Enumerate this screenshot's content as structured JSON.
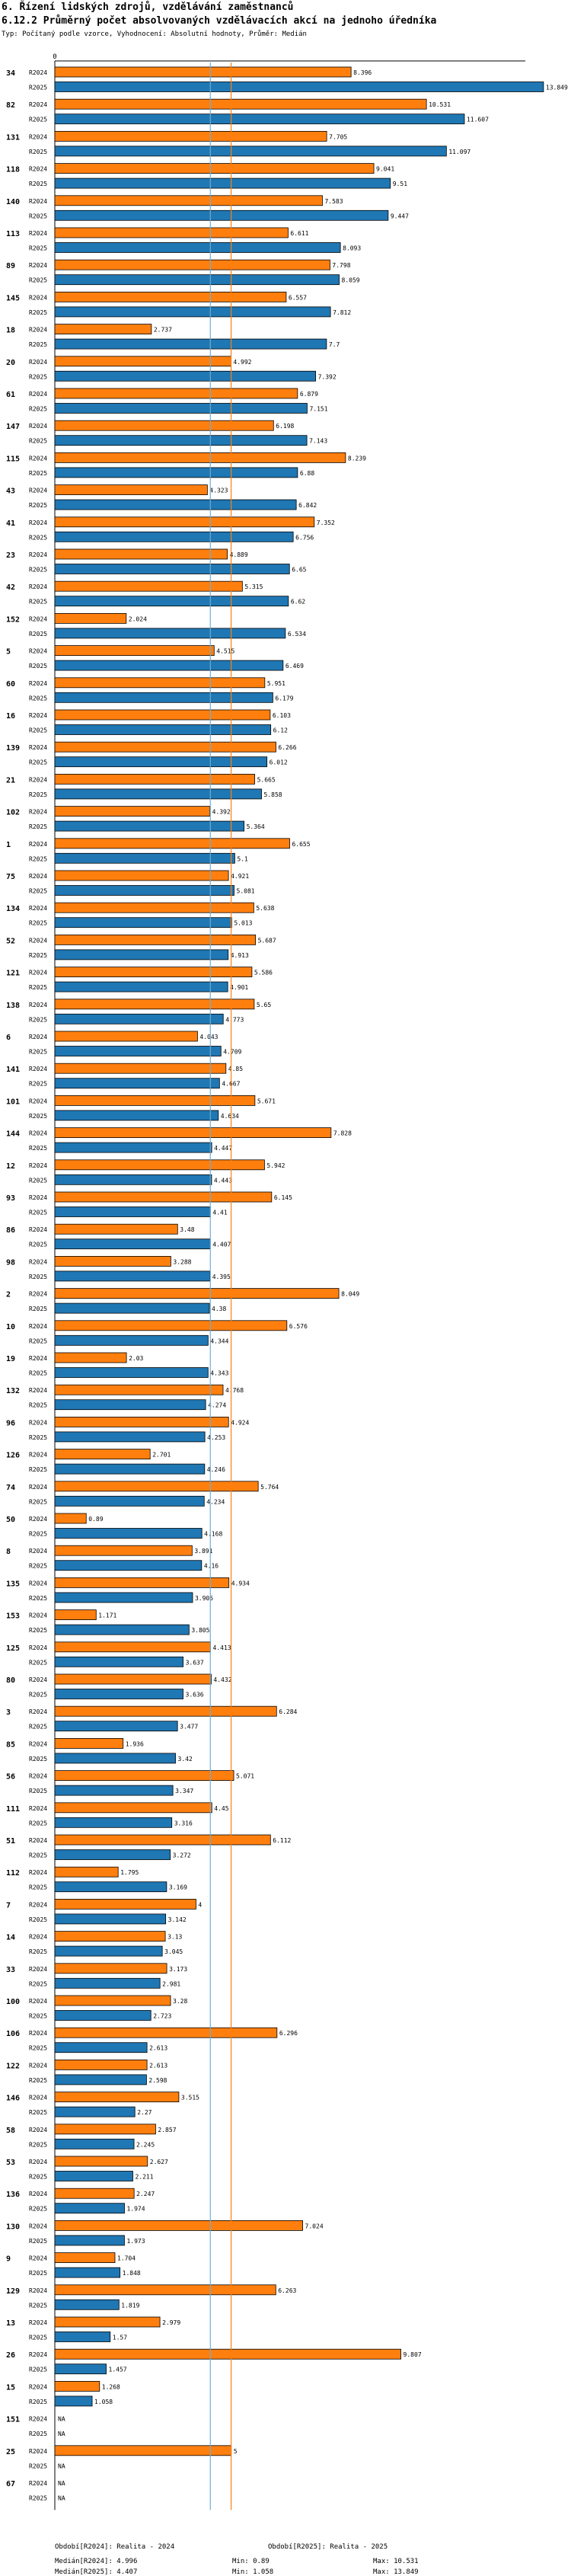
{
  "header": {
    "title": "6. Řízení lidských zdrojů, vzdělávání zaměstnanců",
    "subtitle": "6.12.2 Průměrný počet absolvovaných vzdělávacích akcí na jednoho úředníka",
    "note": "Typ: Počítaný podle vzorce, Vyhodnocení: Absolutní hodnoty, Průměr: Medián"
  },
  "colors": {
    "r2024": "#ff7f0e",
    "r2025": "#1f77b4",
    "median2024": "#ff7f0e",
    "median2025": "#6baed6"
  },
  "chart_data": {
    "type": "bar",
    "orientation": "horizontal",
    "axis_zero_label": "0",
    "series_labels": [
      "R2024",
      "R2025"
    ],
    "xlim": [
      0,
      13.849
    ],
    "median_2024": 4.996,
    "median_2025": 4.407,
    "categories": [
      "34",
      "82",
      "131",
      "118",
      "140",
      "113",
      "89",
      "145",
      "18",
      "20",
      "61",
      "147",
      "115",
      "43",
      "41",
      "23",
      "42",
      "152",
      "5",
      "60",
      "16",
      "139",
      "21",
      "102",
      "1",
      "75",
      "134",
      "52",
      "121",
      "138",
      "6",
      "141",
      "101",
      "144",
      "12",
      "93",
      "86",
      "98",
      "2",
      "10",
      "19",
      "132",
      "96",
      "126",
      "74",
      "50",
      "8",
      "135",
      "153",
      "125",
      "80",
      "3",
      "85",
      "56",
      "111",
      "51",
      "112",
      "7",
      "14",
      "33",
      "100",
      "106",
      "122",
      "146",
      "58",
      "53",
      "136",
      "130",
      "9",
      "129",
      "13",
      "26",
      "15",
      "151",
      "25",
      "67"
    ],
    "values_2024": [
      8.396,
      10.531,
      7.705,
      9.041,
      7.583,
      6.611,
      7.798,
      6.557,
      2.737,
      4.992,
      6.879,
      6.198,
      8.239,
      4.323,
      7.352,
      4.889,
      5.315,
      2.024,
      4.515,
      5.951,
      6.103,
      6.266,
      5.665,
      4.392,
      6.655,
      4.921,
      5.638,
      5.687,
      5.586,
      5.65,
      4.043,
      4.85,
      5.671,
      7.828,
      5.942,
      6.145,
      3.48,
      3.288,
      8.049,
      6.576,
      2.03,
      4.768,
      4.924,
      2.701,
      5.764,
      0.89,
      3.891,
      4.934,
      1.171,
      4.413,
      4.432,
      6.284,
      1.936,
      5.071,
      4.45,
      6.112,
      1.795,
      4,
      3.13,
      3.173,
      3.28,
      6.296,
      2.613,
      3.515,
      2.857,
      2.627,
      2.247,
      7.024,
      1.704,
      6.263,
      2.979,
      9.807,
      1.268,
      null,
      5,
      null
    ],
    "values_2025": [
      13.849,
      11.607,
      11.097,
      9.51,
      9.447,
      8.093,
      8.059,
      7.812,
      7.7,
      7.392,
      7.151,
      7.143,
      6.88,
      6.842,
      6.756,
      6.65,
      6.62,
      6.534,
      6.469,
      6.179,
      6.12,
      6.012,
      5.858,
      5.364,
      5.1,
      5.081,
      5.013,
      4.913,
      4.901,
      4.773,
      4.709,
      4.667,
      4.634,
      4.447,
      4.443,
      4.41,
      4.407,
      4.395,
      4.38,
      4.344,
      4.343,
      4.274,
      4.253,
      4.246,
      4.234,
      4.168,
      4.16,
      3.905,
      3.805,
      3.637,
      3.636,
      3.477,
      3.42,
      3.347,
      3.316,
      3.272,
      3.169,
      3.142,
      3.045,
      2.981,
      2.723,
      2.613,
      2.598,
      2.27,
      2.245,
      2.211,
      1.974,
      1.973,
      1.848,
      1.819,
      1.57,
      1.457,
      1.058,
      null,
      null,
      null
    ],
    "na_label": "NA"
  },
  "footer": {
    "period2024": "Období[R2024]: Realita - 2024",
    "period2025": "Období[R2025]: Realita - 2025",
    "median2024": "Medián[R2024]: 4.996",
    "median2025": "Medián[R2025]: 4.407",
    "min2024": "Min: 0.89",
    "min2025": "Min: 1.058",
    "max2024": "Max: 10.531",
    "max2025": "Max: 13.849"
  }
}
